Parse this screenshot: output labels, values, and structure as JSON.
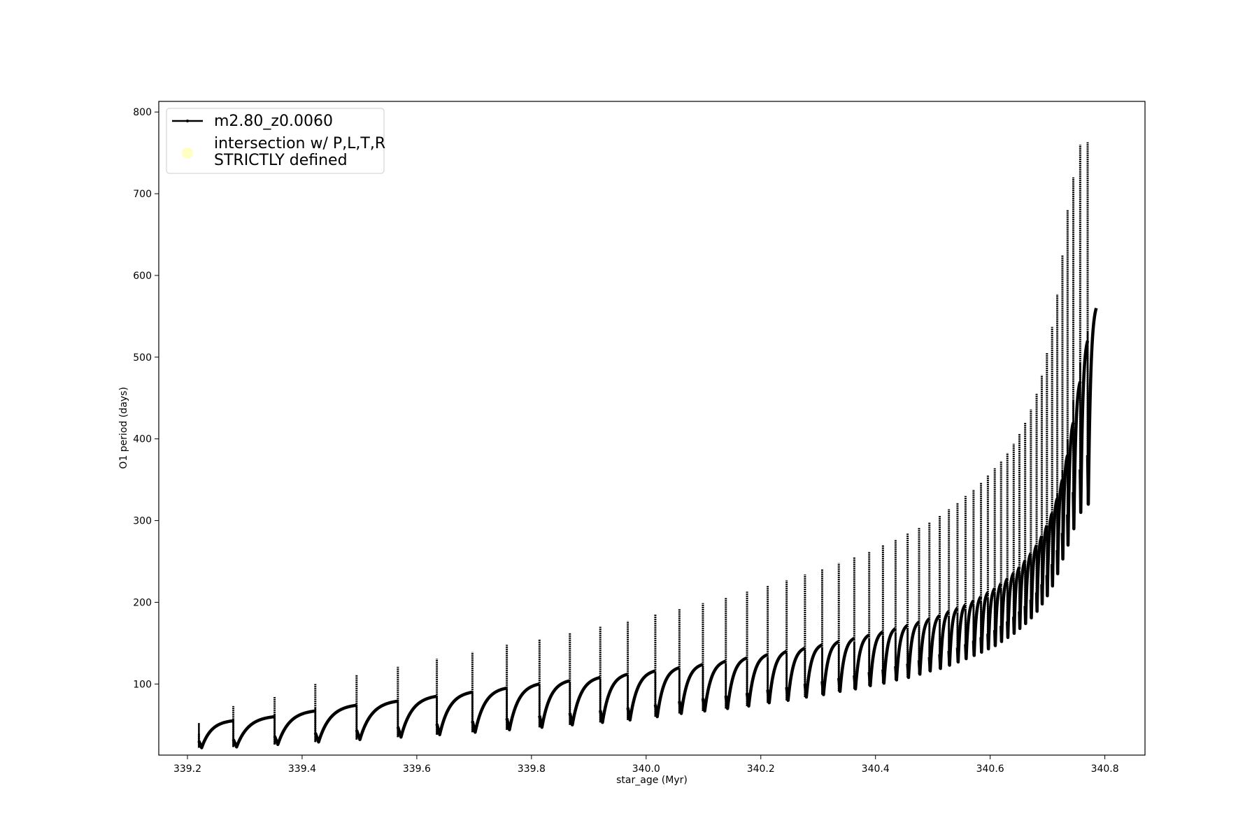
{
  "chart_data": {
    "type": "line",
    "xlabel": "star_age (Myr)",
    "ylabel": "O1 period (days)",
    "xlim": [
      339.15,
      340.87
    ],
    "ylim": [
      13,
      813
    ],
    "xticks": [
      "339.2",
      "339.4",
      "339.6",
      "339.8",
      "340.0",
      "340.2",
      "340.4",
      "340.6",
      "340.8"
    ],
    "yticks": [
      "100",
      "200",
      "300",
      "400",
      "500",
      "600",
      "700",
      "800"
    ],
    "grid": false,
    "legend_position": "upper-left",
    "colors": {
      "series": "#000000",
      "intersection_marker": "#ffffc4"
    },
    "legend": {
      "series_label": "m2.80_z0.0060",
      "marker_label_line1": "intersection w/ P,L,T,R",
      "marker_label_line2": "STRICTLY defined"
    },
    "series": [
      {
        "name": "m2.80_z0.0060",
        "description_of_shape": "pulse cycles",
        "cycles": [
          {
            "start": 339.22,
            "end": 339.28,
            "min": 22,
            "max": 55,
            "spike": 39
          },
          {
            "start": 339.28,
            "end": 339.352,
            "min": 23,
            "max": 60,
            "spike": 73
          },
          {
            "start": 339.352,
            "end": 339.423,
            "min": 26,
            "max": 67,
            "spike": 84
          },
          {
            "start": 339.423,
            "end": 339.495,
            "min": 29,
            "max": 74,
            "spike": 100
          },
          {
            "start": 339.495,
            "end": 339.567,
            "min": 32,
            "max": 79,
            "spike": 111
          },
          {
            "start": 339.567,
            "end": 339.635,
            "min": 35,
            "max": 85,
            "spike": 121
          },
          {
            "start": 339.635,
            "end": 339.697,
            "min": 38,
            "max": 90,
            "spike": 131
          },
          {
            "start": 339.697,
            "end": 339.757,
            "min": 41,
            "max": 95,
            "spike": 139
          },
          {
            "start": 339.757,
            "end": 339.814,
            "min": 44,
            "max": 100,
            "spike": 148
          },
          {
            "start": 339.814,
            "end": 339.867,
            "min": 47,
            "max": 104,
            "spike": 155
          },
          {
            "start": 339.867,
            "end": 339.92,
            "min": 50,
            "max": 108,
            "spike": 163
          },
          {
            "start": 339.92,
            "end": 339.968,
            "min": 53,
            "max": 112,
            "spike": 170
          },
          {
            "start": 339.968,
            "end": 340.016,
            "min": 56,
            "max": 116,
            "spike": 177
          },
          {
            "start": 340.016,
            "end": 340.058,
            "min": 60,
            "max": 120,
            "spike": 185
          },
          {
            "start": 340.058,
            "end": 340.099,
            "min": 64,
            "max": 124,
            "spike": 192
          },
          {
            "start": 340.099,
            "end": 340.139,
            "min": 67,
            "max": 128,
            "spike": 199
          },
          {
            "start": 340.139,
            "end": 340.176,
            "min": 70,
            "max": 132,
            "spike": 206
          },
          {
            "start": 340.176,
            "end": 340.212,
            "min": 73,
            "max": 136,
            "spike": 213
          },
          {
            "start": 340.212,
            "end": 340.245,
            "min": 77,
            "max": 140,
            "spike": 220
          },
          {
            "start": 340.245,
            "end": 340.277,
            "min": 80,
            "max": 144,
            "spike": 227
          },
          {
            "start": 340.277,
            "end": 340.307,
            "min": 84,
            "max": 148,
            "spike": 234
          },
          {
            "start": 340.307,
            "end": 340.336,
            "min": 87,
            "max": 152,
            "spike": 241
          },
          {
            "start": 340.336,
            "end": 340.363,
            "min": 91,
            "max": 156,
            "spike": 248
          },
          {
            "start": 340.363,
            "end": 340.389,
            "min": 94,
            "max": 160,
            "spike": 255
          },
          {
            "start": 340.389,
            "end": 340.413,
            "min": 98,
            "max": 164,
            "spike": 262
          },
          {
            "start": 340.413,
            "end": 340.435,
            "min": 101,
            "max": 168,
            "spike": 270
          },
          {
            "start": 340.435,
            "end": 340.456,
            "min": 105,
            "max": 172,
            "spike": 277
          },
          {
            "start": 340.456,
            "end": 340.476,
            "min": 108,
            "max": 176,
            "spike": 284
          },
          {
            "start": 340.476,
            "end": 340.494,
            "min": 112,
            "max": 180,
            "spike": 291
          },
          {
            "start": 340.494,
            "end": 340.512,
            "min": 116,
            "max": 184,
            "spike": 298
          },
          {
            "start": 340.512,
            "end": 340.528,
            "min": 119,
            "max": 189,
            "spike": 306
          },
          {
            "start": 340.528,
            "end": 340.543,
            "min": 123,
            "max": 193,
            "spike": 314
          },
          {
            "start": 340.543,
            "end": 340.557,
            "min": 127,
            "max": 197,
            "spike": 322
          },
          {
            "start": 340.557,
            "end": 340.571,
            "min": 131,
            "max": 202,
            "spike": 330
          },
          {
            "start": 340.571,
            "end": 340.584,
            "min": 135,
            "max": 207,
            "spike": 338
          },
          {
            "start": 340.584,
            "end": 340.596,
            "min": 139,
            "max": 212,
            "spike": 346
          },
          {
            "start": 340.596,
            "end": 340.608,
            "min": 143,
            "max": 217,
            "spike": 355
          },
          {
            "start": 340.608,
            "end": 340.619,
            "min": 147,
            "max": 223,
            "spike": 364
          },
          {
            "start": 340.619,
            "end": 340.63,
            "min": 152,
            "max": 229,
            "spike": 373
          },
          {
            "start": 340.63,
            "end": 340.641,
            "min": 157,
            "max": 236,
            "spike": 383
          },
          {
            "start": 340.641,
            "end": 340.651,
            "min": 162,
            "max": 243,
            "spike": 394
          },
          {
            "start": 340.651,
            "end": 340.661,
            "min": 168,
            "max": 251,
            "spike": 406
          },
          {
            "start": 340.661,
            "end": 340.671,
            "min": 174,
            "max": 260,
            "spike": 420
          },
          {
            "start": 340.671,
            "end": 340.681,
            "min": 181,
            "max": 270,
            "spike": 436
          },
          {
            "start": 340.681,
            "end": 340.69,
            "min": 189,
            "max": 281,
            "spike": 455
          },
          {
            "start": 340.69,
            "end": 340.699,
            "min": 198,
            "max": 294,
            "spike": 478
          },
          {
            "start": 340.699,
            "end": 340.708,
            "min": 208,
            "max": 309,
            "spike": 505
          },
          {
            "start": 340.708,
            "end": 340.717,
            "min": 220,
            "max": 327,
            "spike": 537
          },
          {
            "start": 340.717,
            "end": 340.726,
            "min": 235,
            "max": 350,
            "spike": 577
          },
          {
            "start": 340.726,
            "end": 340.735,
            "min": 253,
            "max": 380,
            "spike": 625
          },
          {
            "start": 340.735,
            "end": 340.745,
            "min": 270,
            "max": 420,
            "spike": 680
          },
          {
            "start": 340.745,
            "end": 340.757,
            "min": 290,
            "max": 470,
            "spike": 720
          },
          {
            "start": 340.757,
            "end": 340.77,
            "min": 310,
            "max": 520,
            "spike": 760
          },
          {
            "start": 340.77,
            "end": 340.785,
            "min": 320,
            "max": 560,
            "spike": 763
          }
        ]
      }
    ]
  }
}
